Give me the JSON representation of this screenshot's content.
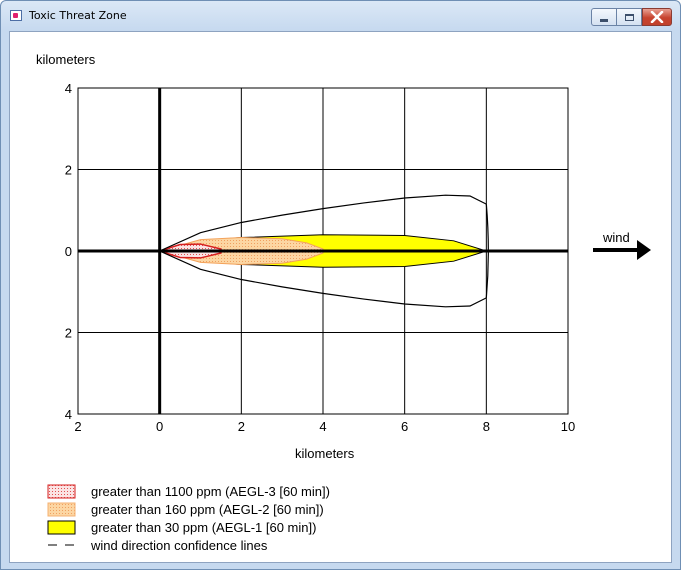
{
  "window": {
    "title": "Toxic Threat Zone",
    "controls": {
      "minimize": "minimize-icon",
      "maximize": "maximize-icon",
      "close": "close-icon"
    }
  },
  "chart_data": {
    "type": "area",
    "x_axis_label": "kilometers",
    "y_axis_label": "kilometers",
    "x_ticks": [
      "2",
      "0",
      "2",
      "4",
      "6",
      "8",
      "10"
    ],
    "y_ticks": [
      "4",
      "2",
      "0",
      "2",
      "4"
    ],
    "xlim": [
      -2,
      10
    ],
    "ylim": [
      -4,
      4
    ],
    "grid": true,
    "wind_label": "wind",
    "zones": [
      {
        "name": "greater than 1100 ppm (AEGL-3 [60 min])",
        "fill": "#f7d6d6",
        "stroke": "#d62020",
        "pattern": "dotted",
        "x": [
          0,
          0.5,
          1.0,
          1.5
        ],
        "half_width": [
          0,
          0.16,
          0.17,
          0.05
        ]
      },
      {
        "name": "greater than 160 ppm (AEGL-2 [60 min])",
        "fill": "#fcd39a",
        "stroke": "#f4a25a",
        "pattern": "dotted",
        "x": [
          0,
          1,
          2,
          3,
          3.6,
          4.0
        ],
        "half_width": [
          0,
          0.28,
          0.33,
          0.3,
          0.2,
          0.05
        ]
      },
      {
        "name": "greater than 30 ppm (AEGL-1 [60 min])",
        "fill": "#ffff00",
        "stroke": "#000000",
        "pattern": "solid",
        "x": [
          0,
          1,
          2,
          4,
          6,
          7.2,
          8.0
        ],
        "half_width": [
          0,
          0.25,
          0.33,
          0.4,
          0.38,
          0.25,
          0.0
        ]
      }
    ],
    "confidence_lines": {
      "name": "wind direction confidence lines",
      "x": [
        0,
        1,
        2,
        3,
        4,
        5,
        6,
        7,
        7.6,
        8.0
      ],
      "half_width": [
        0,
        0.45,
        0.7,
        0.88,
        1.04,
        1.18,
        1.3,
        1.37,
        1.35,
        1.15
      ]
    }
  }
}
